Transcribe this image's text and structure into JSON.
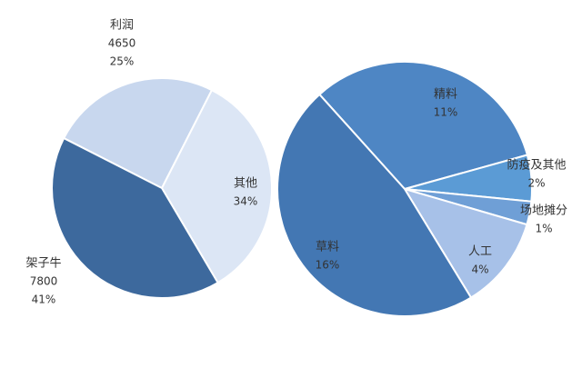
{
  "chart_data": [
    {
      "type": "pie",
      "categories": [
        "利润",
        "其他",
        "架子牛"
      ],
      "amounts": [
        4650,
        null,
        7800
      ],
      "values": [
        25,
        34,
        41
      ],
      "value_labels": [
        "25%",
        "34%",
        "41%"
      ],
      "colors": [
        "#c8d7ee",
        "#dce6f5",
        "#3d699d"
      ]
    },
    {
      "type": "pie",
      "categories": [
        "精料",
        "防疫及其他",
        "场地摊分",
        "人工",
        "草料"
      ],
      "values": [
        11,
        2,
        1,
        4,
        16
      ],
      "value_labels": [
        "11%",
        "2%",
        "1%",
        "4%",
        "16%"
      ],
      "colors": [
        "#4e86c4",
        "#5b9bd5",
        "#6f9fd6",
        "#a7c1e8",
        "#4377b3"
      ]
    }
  ]
}
